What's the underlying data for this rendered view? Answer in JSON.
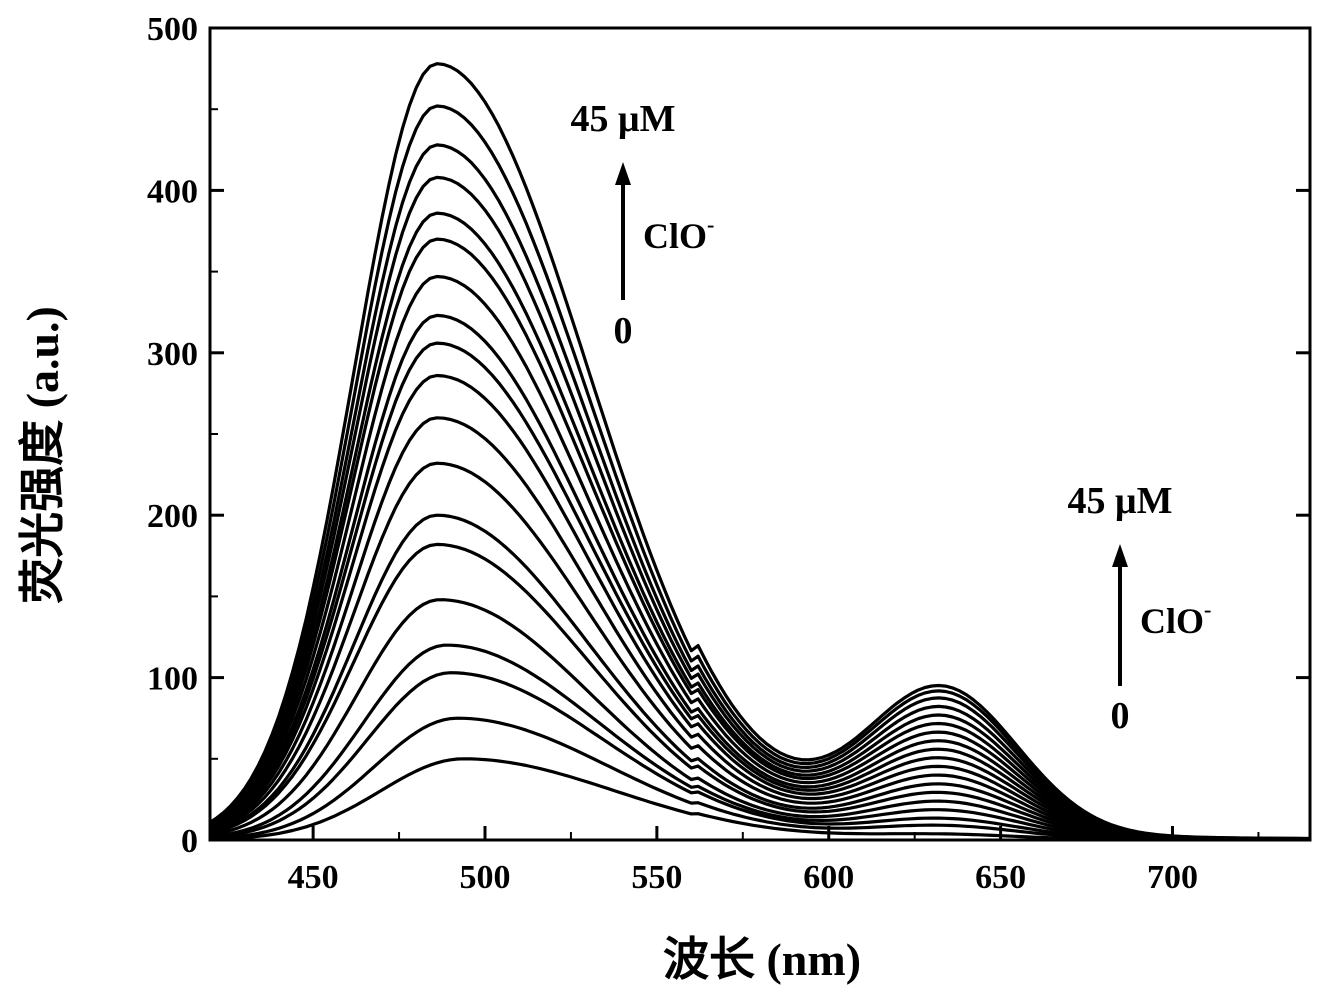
{
  "chart_data": {
    "type": "line",
    "xlabel": "波长 (nm)",
    "ylabel": "荧光强度 (a.u.)",
    "xlim": [
      420,
      740
    ],
    "ylim": [
      0,
      500
    ],
    "x_ticks": [
      450,
      500,
      550,
      600,
      650,
      700
    ],
    "y_ticks": [
      0,
      100,
      200,
      300,
      400,
      500
    ],
    "grid": false,
    "line_color": "#000000",
    "x": [
      420,
      430,
      440,
      450,
      460,
      470,
      480,
      485,
      490,
      500,
      510,
      520,
      530,
      540,
      550,
      560,
      570,
      580,
      590,
      600,
      610,
      620,
      630,
      640,
      650,
      660,
      670,
      680,
      690,
      700,
      710,
      720,
      740
    ],
    "series": [
      {
        "peak1": 50,
        "peak2": 3
      },
      {
        "peak1": 75,
        "peak2": 8
      },
      {
        "peak1": 103,
        "peak2": 12
      },
      {
        "peak1": 120,
        "peak2": 17
      },
      {
        "peak1": 148,
        "peak2": 22
      },
      {
        "peak1": 182,
        "peak2": 27
      },
      {
        "peak1": 200,
        "peak2": 32
      },
      {
        "peak1": 232,
        "peak2": 37
      },
      {
        "peak1": 260,
        "peak2": 42
      },
      {
        "peak1": 286,
        "peak2": 47
      },
      {
        "peak1": 306,
        "peak2": 52
      },
      {
        "peak1": 323,
        "peak2": 57
      },
      {
        "peak1": 347,
        "peak2": 62
      },
      {
        "peak1": 370,
        "peak2": 67
      },
      {
        "peak1": 386,
        "peak2": 72
      },
      {
        "peak1": 408,
        "peak2": 77
      },
      {
        "peak1": 428,
        "peak2": 82
      },
      {
        "peak1": 452,
        "peak2": 86
      },
      {
        "peak1": 478,
        "peak2": 89
      }
    ],
    "annotations": [
      {
        "conc": "45 μM",
        "ion": "ClO",
        "ion_sup": "-",
        "zero": "0",
        "region": "peak near 485 nm"
      },
      {
        "conc": "45 μM",
        "ion": "ClO",
        "ion_sup": "-",
        "zero": "0",
        "region": "peak near 635 nm"
      }
    ]
  }
}
